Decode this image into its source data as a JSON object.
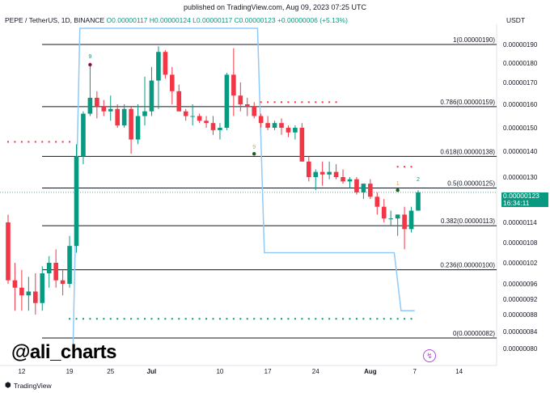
{
  "header": {
    "published": "published on TradingView.com, Aug 09, 2023 07:25 UTC",
    "symbol": "PEPE / TetherUS, 1D, BINANCE",
    "ohlc": "O0.00000117 H0.00000124 L0.00000117 C0.00000123",
    "change": "+0.00000006 (+5.13%)",
    "currency": "USDT"
  },
  "last_price": {
    "value": "0.00000123",
    "countdown": "16:34:11"
  },
  "watermark": "@ali_charts",
  "brand": {
    "icon": "tradingview-logo-icon",
    "label": "TradingView"
  },
  "colors": {
    "up": "#089981",
    "down": "#f23645",
    "fib": "#131722",
    "trail": "#90caf9"
  },
  "chart_data": {
    "type": "candlestick",
    "y_axis": {
      "ticks": [
        "0.00000190",
        "0.00000180",
        "0.00000170",
        "0.00000160",
        "0.00000150",
        "0.00000140",
        "0.00000130",
        "0.00000120",
        "0.00000114",
        "0.00000108",
        "0.00000102",
        "0.00000096",
        "0.00000092",
        "0.00000088",
        "0.00000084",
        "0.00000080"
      ]
    },
    "x_axis": {
      "ticks": [
        "12",
        "19",
        "25",
        "Jul",
        "10",
        "17",
        "24",
        "Aug",
        "7",
        "14"
      ]
    },
    "fib_levels": [
      {
        "ratio": "1",
        "label": "1(0.00000190)"
      },
      {
        "ratio": "0.786",
        "label": "0.786(0.00000159)"
      },
      {
        "ratio": "0.618",
        "label": "0.618(0.00000138)"
      },
      {
        "ratio": "0.5",
        "label": "0.5(0.00000125)"
      },
      {
        "ratio": "0.382",
        "label": "0.382(0.00000113)"
      },
      {
        "ratio": "0.236",
        "label": "0.236(0.00000100)"
      },
      {
        "ratio": "0",
        "label": "0(0.00000082)"
      }
    ],
    "candles": [
      {
        "o": 1.14,
        "h": 1.16,
        "l": 0.96,
        "c": 0.97
      },
      {
        "o": 0.97,
        "h": 1.02,
        "l": 0.89,
        "c": 0.95
      },
      {
        "o": 0.95,
        "h": 1.0,
        "l": 0.89,
        "c": 0.93
      },
      {
        "o": 0.93,
        "h": 0.98,
        "l": 0.89,
        "c": 0.94
      },
      {
        "o": 0.94,
        "h": 0.99,
        "l": 0.88,
        "c": 0.91
      },
      {
        "o": 0.91,
        "h": 1.01,
        "l": 0.89,
        "c": 0.99
      },
      {
        "o": 0.99,
        "h": 1.04,
        "l": 0.95,
        "c": 1.02
      },
      {
        "o": 1.02,
        "h": 1.06,
        "l": 0.95,
        "c": 0.97
      },
      {
        "o": 0.97,
        "h": 1.0,
        "l": 0.93,
        "c": 0.96
      },
      {
        "o": 0.96,
        "h": 1.1,
        "l": 0.95,
        "c": 1.07
      },
      {
        "o": 1.07,
        "h": 1.43,
        "l": 1.05,
        "c": 1.38
      },
      {
        "o": 1.38,
        "h": 1.57,
        "l": 1.35,
        "c": 1.56
      },
      {
        "o": 1.56,
        "h": 1.79,
        "l": 1.55,
        "c": 1.63
      },
      {
        "o": 1.63,
        "h": 1.66,
        "l": 1.54,
        "c": 1.59
      },
      {
        "o": 1.59,
        "h": 1.62,
        "l": 1.55,
        "c": 1.57
      },
      {
        "o": 1.57,
        "h": 1.64,
        "l": 1.53,
        "c": 1.58
      },
      {
        "o": 1.58,
        "h": 1.6,
        "l": 1.5,
        "c": 1.51
      },
      {
        "o": 1.51,
        "h": 1.6,
        "l": 1.5,
        "c": 1.58
      },
      {
        "o": 1.58,
        "h": 1.59,
        "l": 1.39,
        "c": 1.45
      },
      {
        "o": 1.45,
        "h": 1.6,
        "l": 1.43,
        "c": 1.55
      },
      {
        "o": 1.55,
        "h": 1.73,
        "l": 1.51,
        "c": 1.57
      },
      {
        "o": 1.57,
        "h": 1.78,
        "l": 1.55,
        "c": 1.71
      },
      {
        "o": 1.71,
        "h": 1.89,
        "l": 1.58,
        "c": 1.86
      },
      {
        "o": 1.86,
        "h": 1.87,
        "l": 1.72,
        "c": 1.74
      },
      {
        "o": 1.74,
        "h": 1.78,
        "l": 1.6,
        "c": 1.66
      },
      {
        "o": 1.66,
        "h": 1.69,
        "l": 1.57,
        "c": 1.57
      },
      {
        "o": 1.57,
        "h": 1.58,
        "l": 1.53,
        "c": 1.55
      },
      {
        "o": 1.55,
        "h": 1.6,
        "l": 1.51,
        "c": 1.55
      },
      {
        "o": 1.55,
        "h": 1.56,
        "l": 1.52,
        "c": 1.53
      },
      {
        "o": 1.53,
        "h": 1.55,
        "l": 1.5,
        "c": 1.52
      },
      {
        "o": 1.52,
        "h": 1.55,
        "l": 1.47,
        "c": 1.49
      },
      {
        "o": 1.49,
        "h": 1.52,
        "l": 1.45,
        "c": 1.5
      },
      {
        "o": 1.5,
        "h": 1.75,
        "l": 1.49,
        "c": 1.74
      },
      {
        "o": 1.74,
        "h": 1.88,
        "l": 1.55,
        "c": 1.64
      },
      {
        "o": 1.64,
        "h": 1.7,
        "l": 1.57,
        "c": 1.6
      },
      {
        "o": 1.6,
        "h": 1.63,
        "l": 1.55,
        "c": 1.59
      },
      {
        "o": 1.59,
        "h": 1.61,
        "l": 1.54,
        "c": 1.55
      },
      {
        "o": 1.55,
        "h": 1.56,
        "l": 1.5,
        "c": 1.52
      },
      {
        "o": 1.52,
        "h": 1.55,
        "l": 1.49,
        "c": 1.5
      },
      {
        "o": 1.5,
        "h": 1.53,
        "l": 1.49,
        "c": 1.52
      },
      {
        "o": 1.52,
        "h": 1.54,
        "l": 1.47,
        "c": 1.5
      },
      {
        "o": 1.5,
        "h": 1.51,
        "l": 1.46,
        "c": 1.48
      },
      {
        "o": 1.48,
        "h": 1.51,
        "l": 1.45,
        "c": 1.5
      },
      {
        "o": 1.5,
        "h": 1.52,
        "l": 1.36,
        "c": 1.36
      },
      {
        "o": 1.36,
        "h": 1.38,
        "l": 1.28,
        "c": 1.3
      },
      {
        "o": 1.3,
        "h": 1.33,
        "l": 1.24,
        "c": 1.32
      },
      {
        "o": 1.32,
        "h": 1.36,
        "l": 1.26,
        "c": 1.31
      },
      {
        "o": 1.31,
        "h": 1.36,
        "l": 1.29,
        "c": 1.32
      },
      {
        "o": 1.32,
        "h": 1.35,
        "l": 1.29,
        "c": 1.3
      },
      {
        "o": 1.3,
        "h": 1.33,
        "l": 1.27,
        "c": 1.28
      },
      {
        "o": 1.28,
        "h": 1.3,
        "l": 1.25,
        "c": 1.29
      },
      {
        "o": 1.29,
        "h": 1.3,
        "l": 1.22,
        "c": 1.23
      },
      {
        "o": 1.23,
        "h": 1.27,
        "l": 1.2,
        "c": 1.27
      },
      {
        "o": 1.27,
        "h": 1.29,
        "l": 1.2,
        "c": 1.21
      },
      {
        "o": 1.21,
        "h": 1.23,
        "l": 1.16,
        "c": 1.18
      },
      {
        "o": 1.18,
        "h": 1.2,
        "l": 1.14,
        "c": 1.15
      },
      {
        "o": 1.15,
        "h": 1.17,
        "l": 1.13,
        "c": 1.15
      },
      {
        "o": 1.15,
        "h": 1.16,
        "l": 1.1,
        "c": 1.16
      },
      {
        "o": 1.16,
        "h": 1.18,
        "l": 1.06,
        "c": 1.12
      },
      {
        "o": 1.12,
        "h": 1.18,
        "l": 1.11,
        "c": 1.17
      },
      {
        "o": 1.17,
        "h": 1.24,
        "l": 1.17,
        "c": 1.23
      }
    ],
    "trail_line": [
      {
        "i": 9.5,
        "v": 0.8
      },
      {
        "i": 10.5,
        "v": 1.98
      },
      {
        "i": 36.5,
        "v": 1.98
      },
      {
        "i": 37.5,
        "v": 1.05
      },
      {
        "i": 56.5,
        "v": 1.05
      },
      {
        "i": 57.5,
        "v": 0.89
      },
      {
        "i": 59.5,
        "v": 0.89
      }
    ],
    "red_dot_rows": [
      {
        "v": 1.44,
        "from": 0,
        "to": 9
      },
      {
        "v": 1.61,
        "from": 37,
        "to": 48
      },
      {
        "v": 1.34,
        "from": 57,
        "to": 59
      }
    ],
    "green_dot_row": {
      "v": 0.87,
      "from": 9,
      "to": 59
    },
    "markers": [
      {
        "i": 12,
        "v": 1.8,
        "text": "9",
        "kind": "down-arrow-dot"
      },
      {
        "i": 36,
        "v": 1.39,
        "text": "9",
        "kind": "up-arrow-dot"
      },
      {
        "i": 57,
        "v": 1.24,
        "text": "1",
        "kind": "up-arrow-dot"
      },
      {
        "i": 60,
        "v": 1.26,
        "text": "2",
        "kind": "label"
      }
    ]
  }
}
